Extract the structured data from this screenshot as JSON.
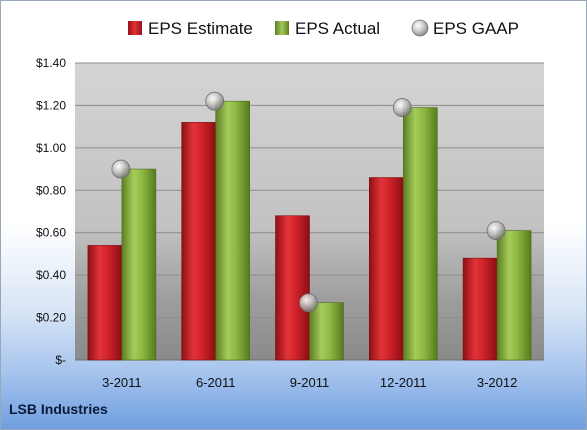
{
  "footer": {
    "company": "LSB Industries"
  },
  "colors": {
    "estimate": "#cc1f24",
    "actual": "#86b03a",
    "gaap": "#b9b9b9",
    "plot_bg": "#b8b8b8"
  },
  "chart_data": {
    "type": "bar",
    "categories": [
      "3-2011",
      "6-2011",
      "9-2011",
      "12-2011",
      "3-2012"
    ],
    "series": [
      {
        "name": "EPS Estimate",
        "values": [
          0.54,
          1.12,
          0.68,
          0.86,
          0.48
        ],
        "marker": "bar"
      },
      {
        "name": "EPS Actual",
        "values": [
          0.9,
          1.22,
          0.27,
          1.19,
          0.61
        ],
        "marker": "bar"
      },
      {
        "name": "EPS GAAP",
        "values": [
          0.9,
          1.22,
          0.27,
          1.19,
          0.61
        ],
        "marker": "circle"
      }
    ],
    "ylim": [
      0,
      1.4
    ],
    "yticks": [
      "$-",
      "$0.20",
      "$0.40",
      "$0.60",
      "$0.80",
      "$1.00",
      "$1.20",
      "$1.40"
    ],
    "ytick_values": [
      0,
      0.2,
      0.4,
      0.6,
      0.8,
      1.0,
      1.2,
      1.4
    ],
    "grid": true,
    "legend_position": "top"
  }
}
